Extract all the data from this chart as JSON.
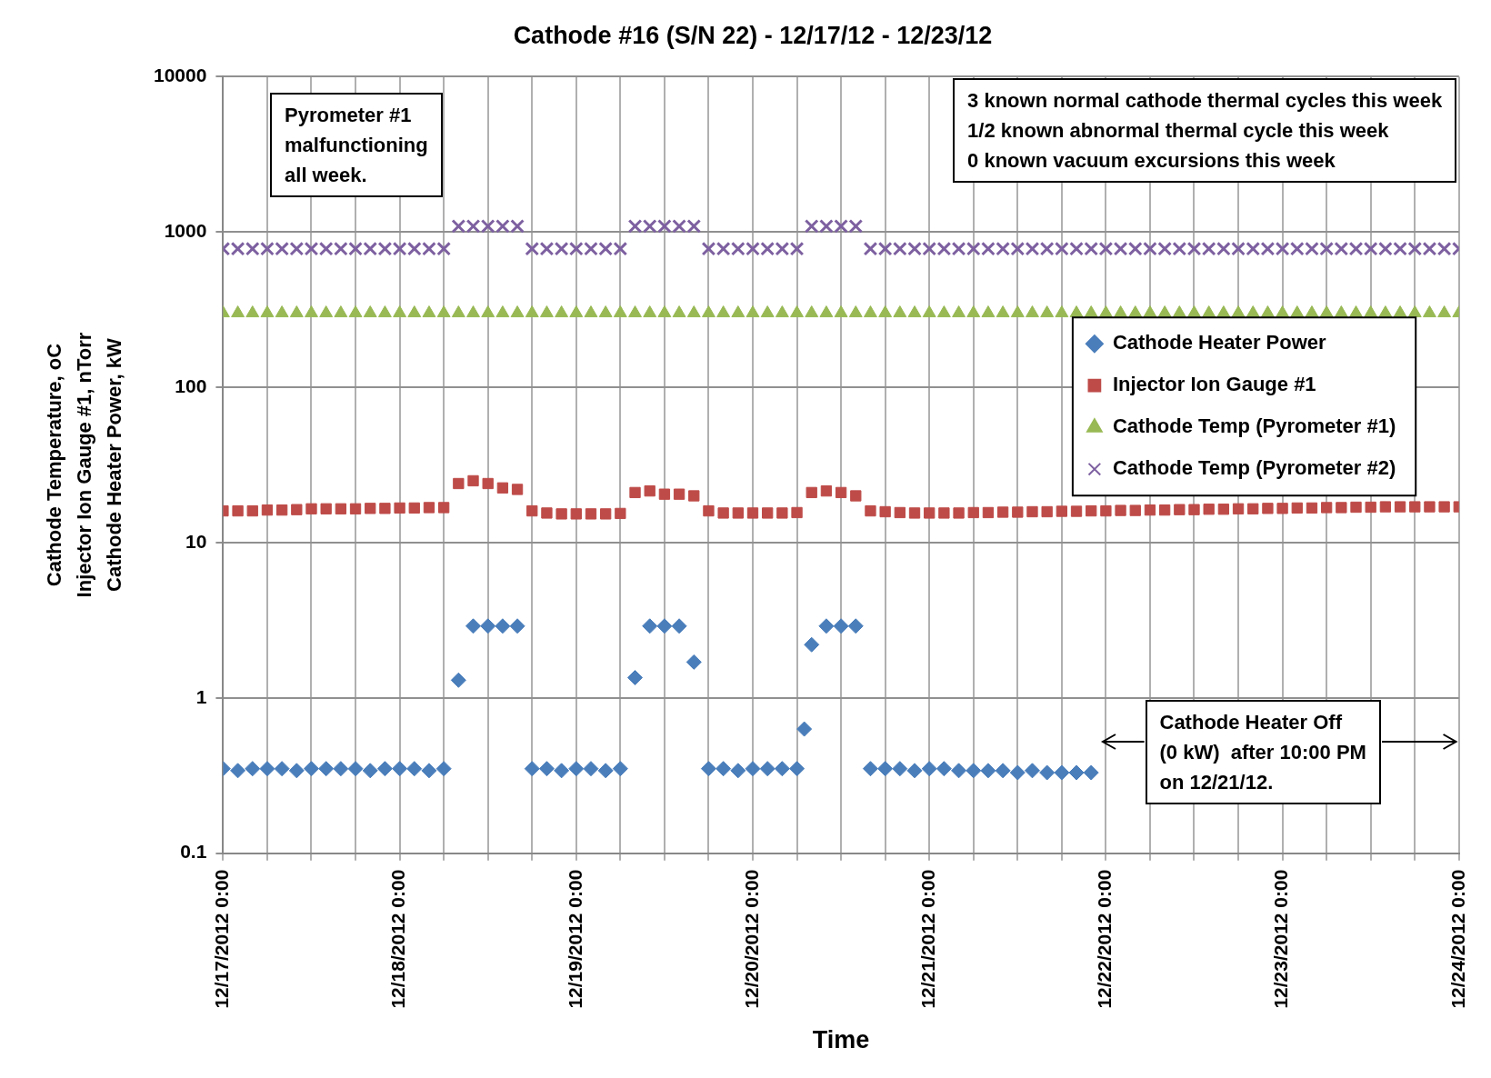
{
  "chart_data": {
    "type": "scatter",
    "title": "Cathode #16 (S/N 22) - 12/17/12 - 12/23/12",
    "xlabel": "Time",
    "ylabel": "Cathode Temperature, oC\nInjector Ion Gauge #1, nTorr\nCathode Heater Power, kW",
    "log": "y",
    "grid": true,
    "legend": "right",
    "ylim": [
      0.1,
      10000
    ],
    "yticks": [
      0.1,
      1,
      10,
      100,
      1000,
      10000
    ],
    "xlim": [
      "2012-12-17T00:00",
      "2012-12-24T00:00"
    ],
    "xticks": [
      {
        "value": "2012-12-17T00:00",
        "label": "12/17/2012 0:00"
      },
      {
        "value": "2012-12-17T06:00",
        "label": null
      },
      {
        "value": "2012-12-17T12:00",
        "label": null
      },
      {
        "value": "2012-12-17T18:00",
        "label": null
      },
      {
        "value": "2012-12-18T00:00",
        "label": "12/18/2012 0:00"
      },
      {
        "value": "2012-12-18T06:00",
        "label": null
      },
      {
        "value": "2012-12-18T12:00",
        "label": null
      },
      {
        "value": "2012-12-18T18:00",
        "label": null
      },
      {
        "value": "2012-12-19T00:00",
        "label": "12/19/2012 0:00"
      },
      {
        "value": "2012-12-19T06:00",
        "label": null
      },
      {
        "value": "2012-12-19T12:00",
        "label": null
      },
      {
        "value": "2012-12-19T18:00",
        "label": null
      },
      {
        "value": "2012-12-20T00:00",
        "label": "12/20/2012 0:00"
      },
      {
        "value": "2012-12-20T06:00",
        "label": null
      },
      {
        "value": "2012-12-20T12:00",
        "label": null
      },
      {
        "value": "2012-12-20T18:00",
        "label": null
      },
      {
        "value": "2012-12-21T00:00",
        "label": "12/21/2012 0:00"
      },
      {
        "value": "2012-12-21T06:00",
        "label": null
      },
      {
        "value": "2012-12-21T12:00",
        "label": null
      },
      {
        "value": "2012-12-21T18:00",
        "label": null
      },
      {
        "value": "2012-12-22T00:00",
        "label": "12/22/2012 0:00"
      },
      {
        "value": "2012-12-22T06:00",
        "label": null
      },
      {
        "value": "2012-12-22T12:00",
        "label": null
      },
      {
        "value": "2012-12-22T18:00",
        "label": null
      },
      {
        "value": "2012-12-23T00:00",
        "label": "12/23/2012 0:00"
      },
      {
        "value": "2012-12-23T06:00",
        "label": null
      },
      {
        "value": "2012-12-23T12:00",
        "label": null
      },
      {
        "value": "2012-12-23T18:00",
        "label": null
      },
      {
        "value": "2012-12-24T00:00",
        "label": "12/24/2012 0:00"
      }
    ],
    "x": [
      "2012-12-17T00:00",
      "2012-12-17T02:00",
      "2012-12-17T04:00",
      "2012-12-17T06:00",
      "2012-12-17T08:00",
      "2012-12-17T10:00",
      "2012-12-17T12:00",
      "2012-12-17T14:00",
      "2012-12-17T16:00",
      "2012-12-17T18:00",
      "2012-12-17T20:00",
      "2012-12-17T22:00",
      "2012-12-18T00:00",
      "2012-12-18T02:00",
      "2012-12-18T04:00",
      "2012-12-18T06:00",
      "2012-12-18T08:00",
      "2012-12-18T10:00",
      "2012-12-18T12:00",
      "2012-12-18T14:00",
      "2012-12-18T16:00",
      "2012-12-18T18:00",
      "2012-12-18T20:00",
      "2012-12-18T22:00",
      "2012-12-19T00:00",
      "2012-12-19T02:00",
      "2012-12-19T04:00",
      "2012-12-19T06:00",
      "2012-12-19T08:00",
      "2012-12-19T10:00",
      "2012-12-19T12:00",
      "2012-12-19T14:00",
      "2012-12-19T16:00",
      "2012-12-19T18:00",
      "2012-12-19T20:00",
      "2012-12-19T22:00",
      "2012-12-20T00:00",
      "2012-12-20T02:00",
      "2012-12-20T04:00",
      "2012-12-20T06:00",
      "2012-12-20T08:00",
      "2012-12-20T10:00",
      "2012-12-20T12:00",
      "2012-12-20T14:00",
      "2012-12-20T16:00",
      "2012-12-20T18:00",
      "2012-12-20T20:00",
      "2012-12-20T22:00",
      "2012-12-21T00:00",
      "2012-12-21T02:00",
      "2012-12-21T04:00",
      "2012-12-21T06:00",
      "2012-12-21T08:00",
      "2012-12-21T10:00",
      "2012-12-21T12:00",
      "2012-12-21T14:00",
      "2012-12-21T16:00",
      "2012-12-21T18:00",
      "2012-12-21T20:00",
      "2012-12-21T22:00",
      "2012-12-22T00:00",
      "2012-12-22T02:00",
      "2012-12-22T04:00",
      "2012-12-22T06:00",
      "2012-12-22T08:00",
      "2012-12-22T10:00",
      "2012-12-22T12:00",
      "2012-12-22T14:00",
      "2012-12-22T16:00",
      "2012-12-22T18:00",
      "2012-12-22T20:00",
      "2012-12-22T22:00",
      "2012-12-23T00:00",
      "2012-12-23T02:00",
      "2012-12-23T04:00",
      "2012-12-23T06:00",
      "2012-12-23T08:00",
      "2012-12-23T10:00",
      "2012-12-23T12:00",
      "2012-12-23T14:00",
      "2012-12-23T16:00",
      "2012-12-23T18:00",
      "2012-12-23T20:00",
      "2012-12-23T22:00",
      "2012-12-24T00:00"
    ],
    "series": [
      {
        "name": "Cathode Heater Power",
        "color": "#4a7ebb",
        "marker": "diamond",
        "x": [
          "2012-12-17T00:00",
          "2012-12-17T02:00",
          "2012-12-17T04:00",
          "2012-12-17T06:00",
          "2012-12-17T08:00",
          "2012-12-17T10:00",
          "2012-12-17T12:00",
          "2012-12-17T14:00",
          "2012-12-17T16:00",
          "2012-12-17T18:00",
          "2012-12-17T20:00",
          "2012-12-17T22:00",
          "2012-12-18T00:00",
          "2012-12-18T02:00",
          "2012-12-18T04:00",
          "2012-12-18T06:00",
          "2012-12-18T08:00",
          "2012-12-18T10:00",
          "2012-12-18T12:00",
          "2012-12-18T14:00",
          "2012-12-18T16:00",
          "2012-12-18T18:00",
          "2012-12-18T20:00",
          "2012-12-18T22:00",
          "2012-12-19T00:00",
          "2012-12-19T02:00",
          "2012-12-19T04:00",
          "2012-12-19T06:00",
          "2012-12-19T08:00",
          "2012-12-19T10:00",
          "2012-12-19T12:00",
          "2012-12-19T14:00",
          "2012-12-19T16:00",
          "2012-12-19T18:00",
          "2012-12-19T20:00",
          "2012-12-19T22:00",
          "2012-12-20T00:00",
          "2012-12-20T02:00",
          "2012-12-20T04:00",
          "2012-12-20T06:00",
          "2012-12-20T07:00",
          "2012-12-20T08:00",
          "2012-12-20T10:00",
          "2012-12-20T12:00",
          "2012-12-20T14:00",
          "2012-12-20T16:00",
          "2012-12-20T18:00",
          "2012-12-20T20:00",
          "2012-12-20T22:00",
          "2012-12-21T00:00",
          "2012-12-21T02:00",
          "2012-12-21T04:00",
          "2012-12-21T06:00",
          "2012-12-21T08:00",
          "2012-12-21T10:00",
          "2012-12-21T12:00",
          "2012-12-21T14:00",
          "2012-12-21T16:00",
          "2012-12-21T18:00",
          "2012-12-21T20:00",
          "2012-12-21T22:00"
        ],
        "values": [
          0.35,
          0.34,
          0.35,
          0.35,
          0.35,
          0.34,
          0.35,
          0.35,
          0.35,
          0.35,
          0.34,
          0.35,
          0.35,
          0.35,
          0.34,
          0.35,
          1.3,
          2.9,
          2.9,
          2.9,
          2.9,
          0.35,
          0.35,
          0.34,
          0.35,
          0.35,
          0.34,
          0.35,
          1.35,
          2.9,
          2.9,
          2.9,
          1.7,
          0.35,
          0.35,
          0.34,
          0.35,
          0.35,
          0.35,
          0.35,
          0.63,
          2.2,
          2.9,
          2.9,
          2.9,
          0.35,
          0.35,
          0.35,
          0.34,
          0.35,
          0.35,
          0.34,
          0.34,
          0.34,
          0.34,
          0.33,
          0.34,
          0.33,
          0.33,
          0.33,
          0.33
        ]
      },
      {
        "name": "Injector Ion Gauge #1",
        "color": "#be4b48",
        "marker": "square",
        "values": [
          16,
          16,
          16,
          16.2,
          16.2,
          16.3,
          16.5,
          16.5,
          16.5,
          16.5,
          16.6,
          16.6,
          16.7,
          16.7,
          16.8,
          16.8,
          24,
          25,
          24,
          22.5,
          22,
          16,
          15.5,
          15.3,
          15.3,
          15.3,
          15.3,
          15.4,
          21,
          21.5,
          20.5,
          20.5,
          20,
          16,
          15.5,
          15.5,
          15.5,
          15.5,
          15.5,
          15.6,
          21,
          21.5,
          21,
          20,
          16,
          15.8,
          15.6,
          15.5,
          15.5,
          15.5,
          15.5,
          15.6,
          15.6,
          15.7,
          15.7,
          15.8,
          15.8,
          15.9,
          15.9,
          16,
          16,
          16.1,
          16.1,
          16.2,
          16.2,
          16.3,
          16.3,
          16.4,
          16.4,
          16.5,
          16.5,
          16.6,
          16.6,
          16.7,
          16.7,
          16.8,
          16.8,
          16.9,
          16.9,
          17,
          17,
          17,
          17,
          17,
          17
        ]
      },
      {
        "name": "Cathode Temp (Pyrometer #1)",
        "color": "#98b954",
        "marker": "triangle",
        "values": [
          300,
          300,
          300,
          300,
          300,
          300,
          300,
          300,
          300,
          300,
          300,
          300,
          300,
          300,
          300,
          300,
          300,
          300,
          300,
          300,
          300,
          300,
          300,
          300,
          300,
          300,
          300,
          300,
          300,
          300,
          300,
          300,
          300,
          300,
          300,
          300,
          300,
          300,
          300,
          300,
          300,
          300,
          300,
          300,
          300,
          300,
          300,
          300,
          300,
          300,
          300,
          300,
          300,
          300,
          300,
          300,
          300,
          300,
          300,
          300,
          300,
          300,
          300,
          300,
          300,
          300,
          300,
          300,
          300,
          300,
          300,
          300,
          300,
          300,
          300,
          300,
          300,
          300,
          300,
          300,
          300,
          300,
          300,
          300,
          300
        ]
      },
      {
        "name": "Cathode Temp (Pyrometer #2)",
        "color": "#7d60a0",
        "marker": "cross",
        "values": [
          780,
          780,
          780,
          780,
          780,
          780,
          780,
          780,
          780,
          780,
          780,
          780,
          780,
          780,
          780,
          780,
          1090,
          1090,
          1090,
          1090,
          1090,
          780,
          780,
          780,
          780,
          780,
          780,
          780,
          1090,
          1090,
          1090,
          1090,
          1090,
          780,
          780,
          780,
          780,
          780,
          780,
          780,
          1090,
          1090,
          1090,
          1090,
          780,
          780,
          780,
          780,
          780,
          780,
          780,
          780,
          780,
          780,
          780,
          780,
          780,
          780,
          780,
          780,
          780,
          780,
          780,
          780,
          780,
          780,
          780,
          780,
          780,
          780,
          780,
          780,
          780,
          780,
          780,
          780,
          780,
          780,
          780,
          780,
          780,
          780,
          780,
          780,
          780
        ]
      }
    ],
    "annotations": [
      "Pyrometer #1\nmalfunctioning\nall week.",
      "3 known normal cathode thermal cycles this week\n1/2 known abnormal thermal cycle this week\n0 known vacuum excursions this week",
      "Cathode Heater Off\n(0 kW)  after 10:00 PM\non 12/21/12."
    ]
  }
}
